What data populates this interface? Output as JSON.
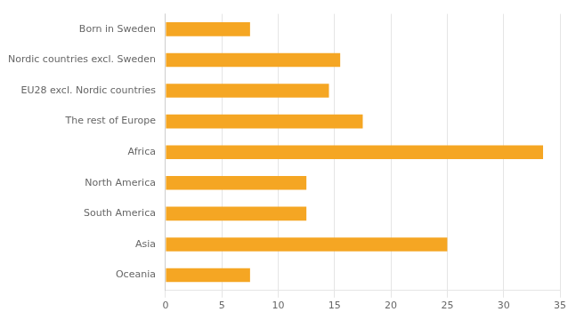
{
  "chart_data": {
    "type": "bar",
    "orientation": "horizontal",
    "categories": [
      "Born in Sweden",
      "Nordic countries excl. Sweden",
      "EU28 excl. Nordic countries",
      "The rest of Europe",
      "Africa",
      "North America",
      "South America",
      "Asia",
      "Oceania"
    ],
    "values": [
      7.5,
      15.5,
      14.5,
      17.5,
      33.5,
      12.5,
      12.5,
      25.0,
      7.5
    ],
    "color": "#F5A623",
    "xlim": [
      0,
      35
    ],
    "xticks": [
      0,
      5,
      10,
      15,
      20,
      25,
      30,
      35
    ],
    "grid": true
  }
}
